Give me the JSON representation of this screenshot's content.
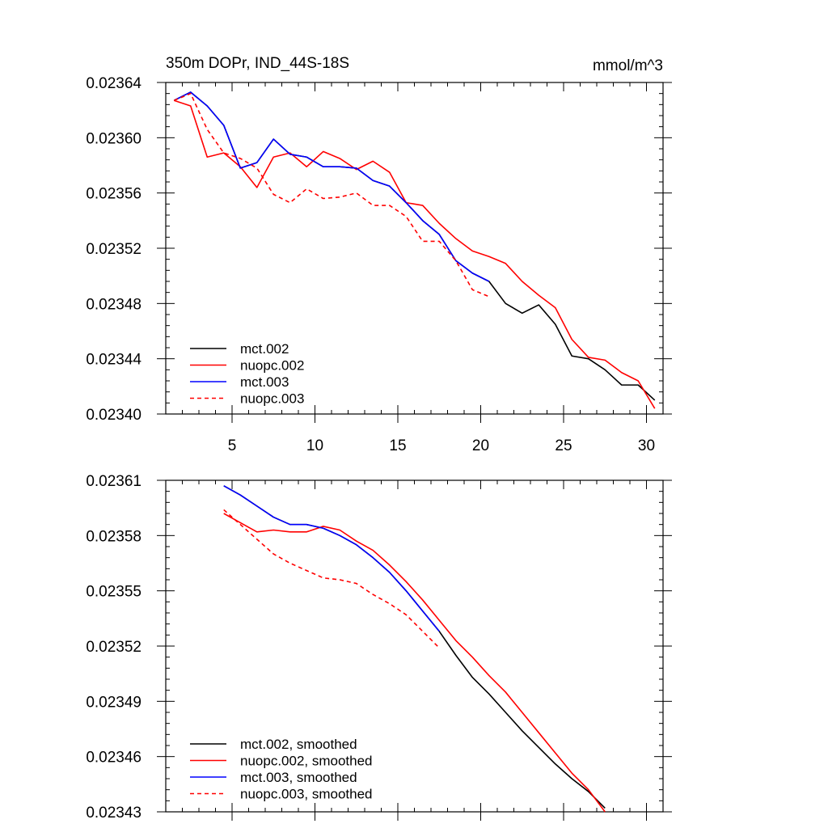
{
  "chart_data": [
    {
      "type": "line",
      "title": "350m DOPr, IND_44S-18S",
      "units": "mmol/m^3",
      "xlim": [
        1,
        31
      ],
      "ylim": [
        0.0234,
        0.02364
      ],
      "xticks": [
        5,
        10,
        15,
        20,
        25,
        30
      ],
      "yticks": [
        0.0234,
        0.02344,
        0.02348,
        0.02352,
        0.02356,
        0.0236,
        0.02364
      ],
      "ytick_labels": [
        "0.02340",
        "0.02344",
        "0.02348",
        "0.02352",
        "0.02356",
        "0.02360",
        "0.02364"
      ],
      "legend_position": "bottom-left",
      "series": [
        {
          "name": "mct.002",
          "color": "#000000",
          "dash": "solid",
          "x": [
            1.5,
            2.5,
            3.5,
            4.5,
            5.5,
            6.5,
            7.5,
            8.5,
            9.5,
            10.5,
            11.5,
            12.5,
            13.5,
            14.5,
            15.5,
            16.5,
            17.5,
            18.5,
            19.5,
            20.5,
            21.5,
            22.5,
            23.5,
            24.5,
            25.5,
            26.5,
            27.5,
            28.5,
            29.5,
            30.5
          ],
          "y": [
            0.023627,
            0.023633,
            0.023623,
            0.023609,
            0.023578,
            0.023582,
            0.023599,
            0.023588,
            0.023586,
            0.023579,
            0.023579,
            0.023578,
            0.023569,
            0.023565,
            0.023553,
            0.02354,
            0.02353,
            0.023511,
            0.023502,
            0.023496,
            0.02348,
            0.023473,
            0.023479,
            0.023465,
            0.023442,
            0.02344,
            0.023432,
            0.023421,
            0.023421,
            0.02341
          ]
        },
        {
          "name": "nuopc.002",
          "color": "#ff0000",
          "dash": "solid",
          "x": [
            1.5,
            2.5,
            3.5,
            4.5,
            5.5,
            6.5,
            7.5,
            8.5,
            9.5,
            10.5,
            11.5,
            12.5,
            13.5,
            14.5,
            15.5,
            16.5,
            17.5,
            18.5,
            19.5,
            20.5,
            21.5,
            22.5,
            23.5,
            24.5,
            25.5,
            26.5,
            27.5,
            28.5,
            29.5,
            30.5
          ],
          "y": [
            0.023627,
            0.023623,
            0.023586,
            0.023589,
            0.023579,
            0.023564,
            0.023586,
            0.023589,
            0.023579,
            0.02359,
            0.023585,
            0.023577,
            0.023583,
            0.023575,
            0.023553,
            0.023551,
            0.023538,
            0.023527,
            0.023518,
            0.023514,
            0.023509,
            0.023496,
            0.023486,
            0.023477,
            0.023454,
            0.023441,
            0.023439,
            0.02343,
            0.023424,
            0.023404
          ]
        },
        {
          "name": "mct.003",
          "color": "#0000ff",
          "dash": "solid",
          "x": [
            1.5,
            2.5,
            3.5,
            4.5,
            5.5,
            6.5,
            7.5,
            8.5,
            9.5,
            10.5,
            11.5,
            12.5,
            13.5,
            14.5,
            15.5,
            16.5,
            17.5,
            18.5,
            19.5,
            20.5
          ],
          "y": [
            0.023627,
            0.023633,
            0.023623,
            0.023609,
            0.023578,
            0.023582,
            0.023599,
            0.023588,
            0.023586,
            0.023579,
            0.023579,
            0.023578,
            0.023569,
            0.023565,
            0.023553,
            0.02354,
            0.02353,
            0.023511,
            0.023502,
            0.023496
          ]
        },
        {
          "name": "nuopc.003",
          "color": "#ff0000",
          "dash": "dashed",
          "x": [
            1.5,
            2.5,
            3.5,
            4.5,
            5.5,
            6.5,
            7.5,
            8.5,
            9.5,
            10.5,
            11.5,
            12.5,
            13.5,
            14.5,
            15.5,
            16.5,
            17.5,
            18.5,
            19.5,
            20.5
          ],
          "y": [
            0.023627,
            0.023632,
            0.023606,
            0.023589,
            0.023585,
            0.023578,
            0.023559,
            0.023553,
            0.023563,
            0.023556,
            0.023557,
            0.02356,
            0.023551,
            0.023551,
            0.023543,
            0.023525,
            0.023525,
            0.023511,
            0.02349,
            0.023485
          ]
        }
      ]
    },
    {
      "type": "line",
      "title": "",
      "xlim": [
        1,
        31
      ],
      "ylim": [
        0.02343,
        0.02361
      ],
      "xticks": [
        5,
        10,
        15,
        20,
        25,
        30
      ],
      "yticks": [
        0.02343,
        0.02346,
        0.02349,
        0.02352,
        0.02355,
        0.02358,
        0.02361
      ],
      "ytick_labels": [
        "0.02343",
        "0.02346",
        "0.02349",
        "0.02352",
        "0.02355",
        "0.02358",
        "0.02361"
      ],
      "legend_position": "bottom-left",
      "series": [
        {
          "name": "mct.002, smoothed",
          "color": "#000000",
          "dash": "solid",
          "x": [
            4.5,
            5.5,
            6.5,
            7.5,
            8.5,
            9.5,
            10.5,
            11.5,
            12.5,
            13.5,
            14.5,
            15.5,
            16.5,
            17.5,
            18.5,
            19.5,
            20.5,
            21.5,
            22.5,
            23.5,
            24.5,
            25.5,
            26.5,
            27.5
          ],
          "y": [
            0.023607,
            0.023602,
            0.023596,
            0.02359,
            0.023586,
            0.023586,
            0.023584,
            0.02358,
            0.023575,
            0.023568,
            0.02356,
            0.02355,
            0.023539,
            0.023528,
            0.023515,
            0.023503,
            0.023494,
            0.023484,
            0.023474,
            0.023465,
            0.023456,
            0.023448,
            0.023441,
            0.023432
          ]
        },
        {
          "name": "nuopc.002, smoothed",
          "color": "#ff0000",
          "dash": "solid",
          "x": [
            4.5,
            5.5,
            6.5,
            7.5,
            8.5,
            9.5,
            10.5,
            11.5,
            12.5,
            13.5,
            14.5,
            15.5,
            16.5,
            17.5,
            18.5,
            19.5,
            20.5,
            21.5,
            22.5,
            23.5,
            24.5,
            25.5,
            26.5,
            27.5
          ],
          "y": [
            0.023592,
            0.023587,
            0.023582,
            0.023583,
            0.023582,
            0.023582,
            0.023585,
            0.023583,
            0.023577,
            0.023572,
            0.023564,
            0.023555,
            0.023545,
            0.023534,
            0.023523,
            0.023514,
            0.023504,
            0.023495,
            0.023484,
            0.023473,
            0.023462,
            0.023451,
            0.023442,
            0.02343
          ]
        },
        {
          "name": "mct.003, smoothed",
          "color": "#0000ff",
          "dash": "solid",
          "x": [
            4.5,
            5.5,
            6.5,
            7.5,
            8.5,
            9.5,
            10.5,
            11.5,
            12.5,
            13.5,
            14.5,
            15.5,
            16.5,
            17.5
          ],
          "y": [
            0.023607,
            0.023602,
            0.023596,
            0.02359,
            0.023586,
            0.023586,
            0.023584,
            0.02358,
            0.023575,
            0.023568,
            0.02356,
            0.02355,
            0.023539,
            0.023528
          ]
        },
        {
          "name": "nuopc.003, smoothed",
          "color": "#ff0000",
          "dash": "dashed",
          "x": [
            4.5,
            5.5,
            6.5,
            7.5,
            8.5,
            9.5,
            10.5,
            11.5,
            12.5,
            13.5,
            14.5,
            15.5,
            16.5,
            17.5
          ],
          "y": [
            0.023594,
            0.023586,
            0.023578,
            0.02357,
            0.023565,
            0.023561,
            0.023557,
            0.023556,
            0.023554,
            0.023548,
            0.023543,
            0.023537,
            0.023528,
            0.023519
          ]
        }
      ]
    }
  ]
}
